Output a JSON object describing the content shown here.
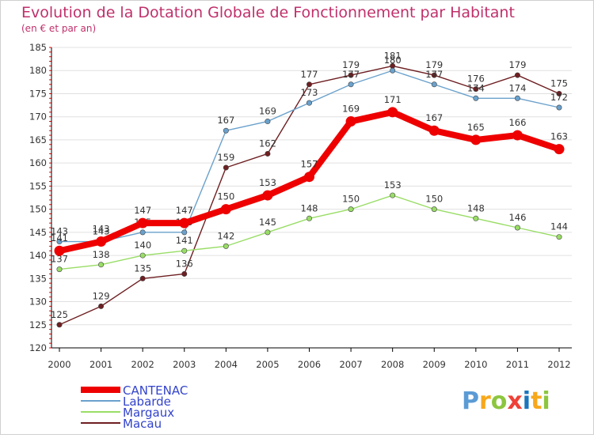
{
  "chart_data": {
    "type": "line",
    "title": "Evolution de la Dotation Globale de Fonctionnement par Habitant",
    "subtitle": "(en € et par an)",
    "xlabel": "",
    "ylabel": "",
    "ylim": [
      120,
      185
    ],
    "yticks": [
      120,
      125,
      130,
      135,
      140,
      145,
      150,
      155,
      160,
      165,
      170,
      175,
      180,
      185
    ],
    "categories": [
      "2000",
      "2001",
      "2002",
      "2003",
      "2004",
      "2005",
      "2006",
      "2007",
      "2008",
      "2009",
      "2010",
      "2011",
      "2012"
    ],
    "grid": "horizontal",
    "legend_position": "bottom-left",
    "series": [
      {
        "name": "Macau",
        "color": "#6e1f22",
        "values": [
          125,
          129,
          135,
          136,
          159,
          162,
          177,
          179,
          181,
          179,
          176,
          179,
          175
        ],
        "labels": [
          "125",
          "129",
          "135",
          "136",
          "159",
          "162",
          "177",
          "179",
          "181",
          "179",
          "176",
          "179",
          "175"
        ]
      },
      {
        "name": "Margaux",
        "color": "#99dd66",
        "values": [
          137,
          138,
          140,
          141,
          142,
          145,
          148,
          150,
          153,
          150,
          148,
          146,
          144
        ],
        "labels": [
          "137",
          "138",
          "140",
          "141",
          "142",
          "145",
          "148",
          "150",
          "153",
          "150",
          "148",
          "146",
          "144"
        ]
      },
      {
        "name": "Labarde",
        "color": "#6aa1cc",
        "values": [
          143,
          143,
          145,
          145,
          167,
          169,
          173,
          177,
          180,
          177,
          174,
          174,
          172
        ],
        "labels": [
          "143",
          "143",
          "145",
          "145",
          "167",
          "169",
          "173",
          "177",
          "180",
          "177",
          "174",
          "174",
          "172"
        ]
      },
      {
        "name": "CANTENAC",
        "color": "#ee0000",
        "values": [
          141,
          143,
          147,
          147,
          150,
          153,
          157,
          169,
          171,
          167,
          165,
          166,
          163
        ],
        "labels": [
          "141",
          "143",
          "147",
          "147",
          "150",
          "153",
          "157",
          "169",
          "171",
          "167",
          "165",
          "166",
          "163"
        ]
      }
    ],
    "legend": [
      "CANTENAC",
      "Labarde",
      "Margaux",
      "Macau"
    ]
  },
  "branding": {
    "logo_text": "Proxiti",
    "logo_colors": [
      "#5b9bd5",
      "#f7a81b",
      "#8cc63f",
      "#ef4136",
      "#1c75bc",
      "#f7a81b",
      "#8cc63f"
    ]
  },
  "colors": {
    "title": "#c0306b",
    "axis": "#000000",
    "grid": "#e0e0e0",
    "tick_mark": "#ff0000",
    "legend_text": "#3344cc"
  }
}
